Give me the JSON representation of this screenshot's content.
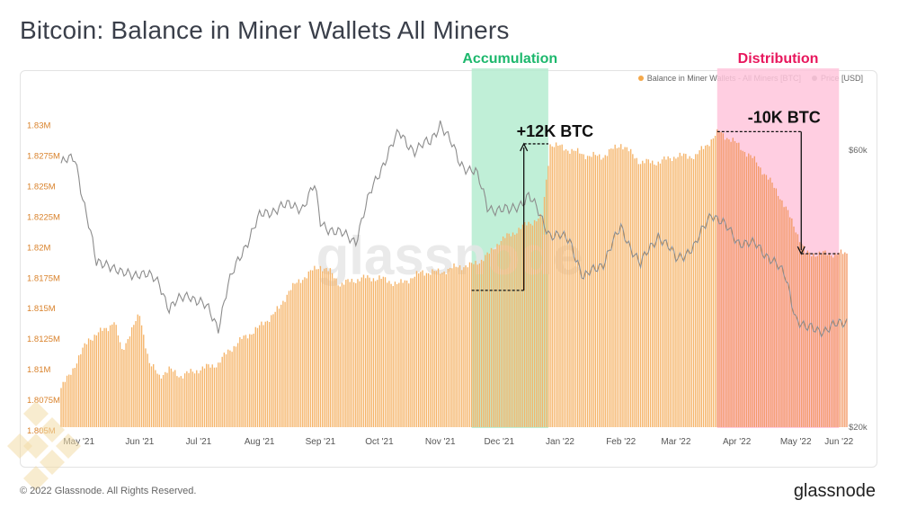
{
  "header": {
    "title": "Bitcoin: Balance in Miner Wallets All Miners"
  },
  "legend": {
    "items": [
      {
        "label": "Balance in Miner Wallets - All Miners [BTC]",
        "color": "#f4a84a"
      },
      {
        "label": "Price [USD]",
        "color": "#8c8c8c"
      }
    ]
  },
  "footer": {
    "copyright": "© 2022 Glassnode. All Rights Reserved.",
    "brand": "glassnode"
  },
  "watermark": "glassnode",
  "colors": {
    "bars": "#f5b469",
    "bars_distribution": "#f39a67",
    "accumulation_fill": "#b5ecd0",
    "accumulation_text": "#1db86d",
    "distribution_fill": "#ffc6dc",
    "distribution_text": "#e8175d",
    "price_line": "#8c8c8c",
    "left_axis_text": "#d9822b",
    "right_axis_text": "#666666"
  },
  "chart_data": {
    "type": "bar",
    "title": "Bitcoin: Balance in Miner Wallets All Miners",
    "x_range": [
      "2021-05-01",
      "2022-06-05"
    ],
    "x_ticks": [
      "May '21",
      "Jun '21",
      "Jul '21",
      "Aug '21",
      "Sep '21",
      "Oct '21",
      "Nov '21",
      "Dec '21",
      "Jan '22",
      "Feb '22",
      "Mar '22",
      "Apr '22",
      "May '22",
      "Jun '22"
    ],
    "y_left": {
      "unit": "BTC",
      "range": [
        1.805,
        1.831
      ],
      "ticks": [
        1.805,
        1.8075,
        1.81,
        1.8125,
        1.815,
        1.8175,
        1.82,
        1.8225,
        1.825,
        1.8275,
        1.83
      ],
      "tick_labels": [
        "1.805M",
        "1.8075M",
        "1.81M",
        "1.8125M",
        "1.815M",
        "1.8175M",
        "1.82M",
        "1.8225M",
        "1.825M",
        "1.8275M",
        "1.83M"
      ]
    },
    "y_right": {
      "unit": "USD",
      "scale": "log",
      "ticks": [
        20000,
        60000
      ],
      "tick_labels": [
        "$20k",
        "$60k"
      ]
    },
    "series": [
      {
        "name": "Balance in Miner Wallets - All Miners [BTC]",
        "kind": "bar",
        "axis": "left",
        "points": [
          [
            "2021-05-01",
            1.8085
          ],
          [
            "2021-05-05",
            1.8095
          ],
          [
            "2021-05-10",
            1.811
          ],
          [
            "2021-05-15",
            1.8125
          ],
          [
            "2021-05-20",
            1.813
          ],
          [
            "2021-05-25",
            1.8135
          ],
          [
            "2021-05-28",
            1.814
          ],
          [
            "2021-06-01",
            1.8115
          ],
          [
            "2021-06-05",
            1.813
          ],
          [
            "2021-06-10",
            1.8145
          ],
          [
            "2021-06-15",
            1.8105
          ],
          [
            "2021-06-20",
            1.8095
          ],
          [
            "2021-06-25",
            1.81
          ],
          [
            "2021-07-01",
            1.8095
          ],
          [
            "2021-07-10",
            1.81
          ],
          [
            "2021-07-20",
            1.8105
          ],
          [
            "2021-07-25",
            1.8115
          ],
          [
            "2021-08-01",
            1.8125
          ],
          [
            "2021-08-10",
            1.8135
          ],
          [
            "2021-08-20",
            1.815
          ],
          [
            "2021-08-25",
            1.8165
          ],
          [
            "2021-09-01",
            1.8175
          ],
          [
            "2021-09-05",
            1.818
          ],
          [
            "2021-09-10",
            1.8185
          ],
          [
            "2021-09-15",
            1.818
          ],
          [
            "2021-09-20",
            1.817
          ],
          [
            "2021-10-01",
            1.8175
          ],
          [
            "2021-10-10",
            1.8175
          ],
          [
            "2021-10-20",
            1.817
          ],
          [
            "2021-11-01",
            1.818
          ],
          [
            "2021-11-10",
            1.818
          ],
          [
            "2021-11-20",
            1.8185
          ],
          [
            "2021-11-25",
            1.8185
          ],
          [
            "2021-12-01",
            1.819
          ],
          [
            "2021-12-05",
            1.8195
          ],
          [
            "2021-12-10",
            1.8205
          ],
          [
            "2021-12-15",
            1.821
          ],
          [
            "2021-12-20",
            1.8215
          ],
          [
            "2021-12-25",
            1.822
          ],
          [
            "2022-01-01",
            1.8225
          ],
          [
            "2022-01-05",
            1.8285
          ],
          [
            "2022-01-15",
            1.828
          ],
          [
            "2022-01-25",
            1.8275
          ],
          [
            "2022-02-01",
            1.8275
          ],
          [
            "2022-02-10",
            1.8285
          ],
          [
            "2022-02-20",
            1.827
          ],
          [
            "2022-03-01",
            1.827
          ],
          [
            "2022-03-10",
            1.8275
          ],
          [
            "2022-03-20",
            1.8275
          ],
          [
            "2022-04-01",
            1.8295
          ],
          [
            "2022-04-10",
            1.8285
          ],
          [
            "2022-04-20",
            1.827
          ],
          [
            "2022-05-01",
            1.8245
          ],
          [
            "2022-05-10",
            1.8215
          ],
          [
            "2022-05-15",
            1.8195
          ],
          [
            "2022-05-20",
            1.8195
          ],
          [
            "2022-06-01",
            1.8195
          ],
          [
            "2022-06-05",
            1.8195
          ]
        ]
      },
      {
        "name": "Price [USD]",
        "kind": "line",
        "axis": "right",
        "points": [
          [
            "2021-05-01",
            57000
          ],
          [
            "2021-05-08",
            58000
          ],
          [
            "2021-05-12",
            50000
          ],
          [
            "2021-05-19",
            38000
          ],
          [
            "2021-05-25",
            38500
          ],
          [
            "2021-06-01",
            36500
          ],
          [
            "2021-06-10",
            37000
          ],
          [
            "2021-06-20",
            35500
          ],
          [
            "2021-06-25",
            32000
          ],
          [
            "2021-07-05",
            34000
          ],
          [
            "2021-07-15",
            31800
          ],
          [
            "2021-07-20",
            29800
          ],
          [
            "2021-07-25",
            35000
          ],
          [
            "2021-08-01",
            40000
          ],
          [
            "2021-08-10",
            46000
          ],
          [
            "2021-08-20",
            48000
          ],
          [
            "2021-09-01",
            48000
          ],
          [
            "2021-09-07",
            52000
          ],
          [
            "2021-09-10",
            45000
          ],
          [
            "2021-09-20",
            43000
          ],
          [
            "2021-09-28",
            42000
          ],
          [
            "2021-10-05",
            50000
          ],
          [
            "2021-10-15",
            60000
          ],
          [
            "2021-10-20",
            64000
          ],
          [
            "2021-10-28",
            60000
          ],
          [
            "2021-11-05",
            62000
          ],
          [
            "2021-11-10",
            67000
          ],
          [
            "2021-11-20",
            57000
          ],
          [
            "2021-11-28",
            55000
          ],
          [
            "2021-12-04",
            48000
          ],
          [
            "2021-12-15",
            47000
          ],
          [
            "2021-12-25",
            50000
          ],
          [
            "2022-01-05",
            43000
          ],
          [
            "2022-01-15",
            42000
          ],
          [
            "2022-01-22",
            36000
          ],
          [
            "2022-02-01",
            38500
          ],
          [
            "2022-02-10",
            44000
          ],
          [
            "2022-02-20",
            38000
          ],
          [
            "2022-03-01",
            43000
          ],
          [
            "2022-03-10",
            39000
          ],
          [
            "2022-03-20",
            41000
          ],
          [
            "2022-03-28",
            47000
          ],
          [
            "2022-04-10",
            42000
          ],
          [
            "2022-04-20",
            41000
          ],
          [
            "2022-04-28",
            39000
          ],
          [
            "2022-05-05",
            36000
          ],
          [
            "2022-05-10",
            31000
          ],
          [
            "2022-05-15",
            29500
          ],
          [
            "2022-05-25",
            29500
          ],
          [
            "2022-06-01",
            30000
          ],
          [
            "2022-06-05",
            30500
          ]
        ]
      }
    ],
    "zones": [
      {
        "label": "Accumulation",
        "from": "2021-11-26",
        "to": "2022-01-04"
      },
      {
        "label": "Distribution",
        "from": "2022-03-31",
        "to": "2022-06-01"
      }
    ],
    "annotations": [
      {
        "label": "+12K BTC",
        "from_date": "2021-11-26",
        "from_value": 1.8165,
        "to_date": "2022-01-04",
        "to_value": 1.8285
      },
      {
        "label": "-10K BTC",
        "from_date": "2022-03-31",
        "from_value": 1.8295,
        "to_date": "2022-06-01",
        "to_value": 1.8195
      }
    ]
  }
}
